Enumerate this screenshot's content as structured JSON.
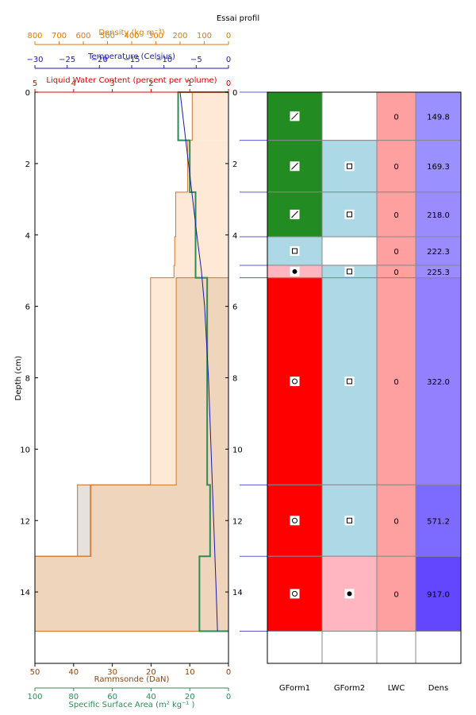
{
  "chart_data": {
    "type": "table",
    "title": "Essai profil",
    "depth_axis": {
      "label": "Depth (cm)",
      "ylim": [
        0,
        16
      ],
      "ticks": [
        0,
        2,
        4,
        6,
        8,
        10,
        12,
        14
      ],
      "inverted": true
    },
    "density_axis": {
      "label": "Density (kg m⁻³)",
      "xlim": [
        800,
        0
      ],
      "ticks": [
        800,
        700,
        600,
        500,
        400,
        300,
        200,
        100,
        0
      ],
      "color": "#e07b00"
    },
    "temperature_axis": {
      "label": "Temperature (Celsius)",
      "xlim": [
        -30,
        0
      ],
      "ticks": [
        -30,
        -25,
        -20,
        -15,
        -10,
        -5,
        0
      ],
      "tick_labels": [
        "−30",
        "−25",
        "−20",
        "−15",
        "−10",
        "−5",
        "0"
      ],
      "color": "#1a1aaa"
    },
    "lwc_axis": {
      "label": "Liquid Water Content (percent per volume)",
      "xlim": [
        5,
        0
      ],
      "ticks": [
        5,
        4,
        3,
        2,
        1,
        0
      ],
      "color": "#dd0000"
    },
    "ram_axis": {
      "label": "Rammsonde (DaN)",
      "xlim": [
        50,
        0
      ],
      "ticks": [
        50,
        40,
        30,
        20,
        10,
        0
      ],
      "color": "#8b4513"
    },
    "ssa_axis": {
      "label": "Specific Surface Area (m²  kg⁻¹ )",
      "xlim": [
        100,
        0
      ],
      "ticks": [
        100,
        80,
        60,
        40,
        20,
        0
      ],
      "color": "#2e8b57"
    },
    "layers": [
      {
        "top": 0.0,
        "bottom": 1.35,
        "density": 149.8,
        "lwc": "0",
        "gform1": "slash",
        "gform2": "",
        "color1": "#228b22",
        "color2": "#ffffff",
        "dens_color": "#9b90ff"
      },
      {
        "top": 1.35,
        "bottom": 2.8,
        "density": 169.3,
        "lwc": "0",
        "gform1": "slash",
        "gform2": "square",
        "color1": "#228b22",
        "color2": "#add8e6",
        "dens_color": "#9b90ff"
      },
      {
        "top": 2.8,
        "bottom": 4.05,
        "density": 218.0,
        "lwc": "0",
        "gform1": "slash",
        "gform2": "square",
        "color1": "#228b22",
        "color2": "#add8e6",
        "dens_color": "#9a8cff"
      },
      {
        "top": 4.05,
        "bottom": 4.85,
        "density": 222.3,
        "lwc": "0",
        "gform1": "square",
        "gform2": "",
        "color1": "#add8e6",
        "color2": "#ffffff",
        "dens_color": "#9a8cff"
      },
      {
        "top": 4.85,
        "bottom": 5.2,
        "density": 225.3,
        "lwc": "0",
        "gform1": "dot",
        "gform2": "square",
        "color1": "#ffb6c1",
        "color2": "#add8e6",
        "dens_color": "#9a8cff"
      },
      {
        "top": 5.2,
        "bottom": 11.0,
        "density": 322.0,
        "lwc": "0",
        "gform1": "circle",
        "gform2": "square",
        "color1": "#ff0000",
        "color2": "#add8e6",
        "dens_color": "#9380ff"
      },
      {
        "top": 11.0,
        "bottom": 13.0,
        "density": 571.2,
        "lwc": "0",
        "gform1": "circle",
        "gform2": "square",
        "color1": "#ff0000",
        "color2": "#add8e6",
        "dens_color": "#7d6aff"
      },
      {
        "top": 13.0,
        "bottom": 15.1,
        "density": 917.0,
        "lwc": "0",
        "gform1": "circle",
        "gform2": "dot",
        "color1": "#ff0000",
        "color2": "#ffb6c1",
        "dens_color": "#6347ff"
      }
    ],
    "density_profile": [
      {
        "top": 0.0,
        "bottom": 1.35,
        "value": 149.8
      },
      {
        "top": 1.35,
        "bottom": 2.8,
        "value": 169.3
      },
      {
        "top": 2.8,
        "bottom": 4.05,
        "value": 218.0
      },
      {
        "top": 4.05,
        "bottom": 4.85,
        "value": 222.3
      },
      {
        "top": 4.85,
        "bottom": 5.2,
        "value": 225.3
      },
      {
        "top": 5.2,
        "bottom": 11.0,
        "value": 322.0
      },
      {
        "top": 11.0,
        "bottom": 13.0,
        "value": 571.2
      },
      {
        "top": 13.0,
        "bottom": 15.1,
        "value": 917.0
      }
    ],
    "rammsonde_profile": [
      {
        "top": 0.0,
        "bottom": 0.0,
        "value": 0
      },
      {
        "top": 0.0,
        "bottom": 5.2,
        "value": 0
      },
      {
        "top": 5.2,
        "bottom": 11.0,
        "value": 13.5
      },
      {
        "top": 11.0,
        "bottom": 13.0,
        "value": 35.5
      },
      {
        "top": 13.0,
        "bottom": 15.1,
        "value": 50
      }
    ],
    "rammsonde_profile_2": [
      {
        "top": 11.0,
        "bottom": 13.0,
        "value": 39.0
      },
      {
        "top": 13.0,
        "bottom": 15.1,
        "value": 50
      }
    ],
    "ssa_profile": [
      {
        "top": 0.0,
        "bottom": 1.35,
        "value": 0
      },
      {
        "top": 0.0,
        "bottom": 1.35,
        "value": 26
      },
      {
        "top": 1.35,
        "bottom": 2.8,
        "value": 20
      },
      {
        "top": 2.8,
        "bottom": 5.2,
        "value": 17
      },
      {
        "top": 5.2,
        "bottom": 11.0,
        "value": 11
      },
      {
        "top": 11.0,
        "bottom": 13.0,
        "value": 9.5
      },
      {
        "top": 13.0,
        "bottom": 15.1,
        "value": 15
      }
    ],
    "temperature_profile": {
      "depth": [
        0.0,
        2.0,
        4.0,
        5.0,
        6.0,
        8.0,
        10.0,
        12.0,
        14.0,
        15.1
      ],
      "temp": [
        -7.5,
        -6.2,
        -4.9,
        -4.2,
        -3.7,
        -3.1,
        -2.7,
        -2.3,
        -1.9,
        -1.7
      ]
    },
    "table_headers": [
      "GForm1",
      "GForm2",
      "LWC",
      "Dens"
    ]
  }
}
